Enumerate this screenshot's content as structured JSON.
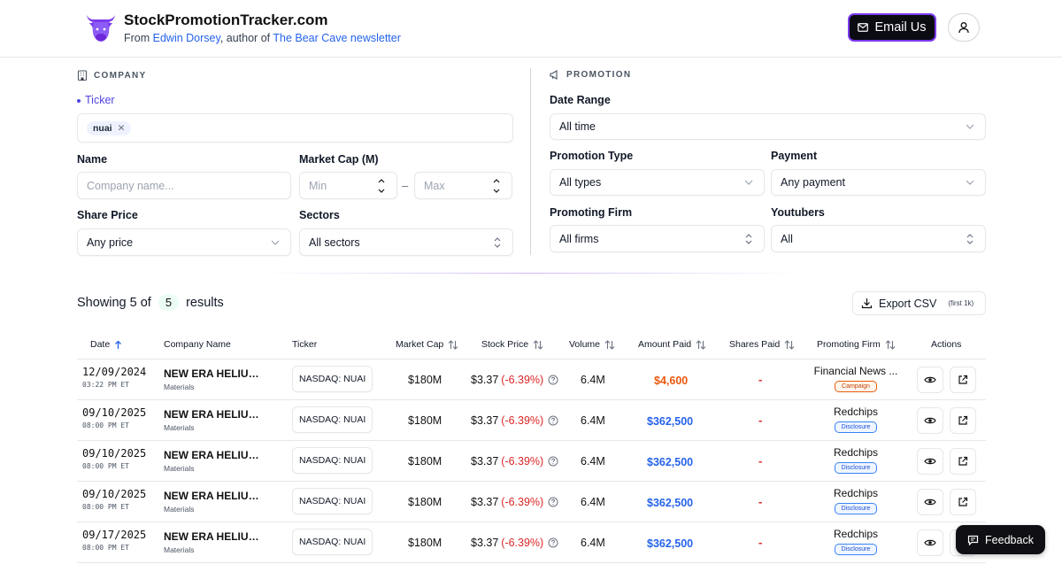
{
  "header": {
    "title": "StockPromotionTracker.com",
    "sub_prefix": "From ",
    "author": "Edwin Dorsey",
    "sub_middle": ", author of ",
    "newsletter": "The Bear Cave newsletter",
    "email_label": "Email Us"
  },
  "company": {
    "section_label": "COMPANY",
    "ticker_label": "Ticker",
    "ticker_chip": "nuai",
    "name_label": "Name",
    "name_placeholder": "Company name...",
    "market_cap_label": "Market Cap (M)",
    "min_placeholder": "Min",
    "max_placeholder": "Max",
    "range_dash": "–",
    "share_price_label": "Share Price",
    "share_price_value": "Any price",
    "sectors_label": "Sectors",
    "sectors_value": "All sectors"
  },
  "promotion": {
    "section_label": "PROMOTION",
    "date_range_label": "Date Range",
    "date_range_value": "All time",
    "type_label": "Promotion Type",
    "type_value": "All types",
    "payment_label": "Payment",
    "payment_value": "Any payment",
    "firm_label": "Promoting Firm",
    "firm_value": "All firms",
    "youtubers_label": "Youtubers",
    "youtubers_value": "All"
  },
  "results": {
    "prefix": "Showing 5 of",
    "count": "5",
    "suffix": "results",
    "export_label": "Export CSV",
    "export_note": "(first 1k)"
  },
  "table": {
    "headers": {
      "date": "Date",
      "company": "Company Name",
      "ticker": "Ticker",
      "market_cap": "Market Cap",
      "stock_price": "Stock Price",
      "volume": "Volume",
      "amount_paid": "Amount Paid",
      "shares_paid": "Shares Paid",
      "promoting_firm": "Promoting Firm",
      "actions": "Actions"
    },
    "rows": [
      {
        "date": "12/09/2024",
        "time": "03:22 PM ET",
        "company": "NEW ERA HELIUM I...",
        "sector": "Materials",
        "ticker": "NASDAQ: NUAI",
        "market_cap": "$180M",
        "price": "$3.37",
        "change": "(-6.39%)",
        "volume": "6.4M",
        "amount": "$4,600",
        "amount_color": "orange",
        "shares": "-",
        "firm": "Financial News ...",
        "badge": "Campaign"
      },
      {
        "date": "09/10/2025",
        "time": "08:00 PM ET",
        "company": "NEW ERA HELIUM I...",
        "sector": "Materials",
        "ticker": "NASDAQ: NUAI",
        "market_cap": "$180M",
        "price": "$3.37",
        "change": "(-6.39%)",
        "volume": "6.4M",
        "amount": "$362,500",
        "amount_color": "blue",
        "shares": "-",
        "firm": "Redchips",
        "badge": "Disclosure"
      },
      {
        "date": "09/10/2025",
        "time": "08:00 PM ET",
        "company": "NEW ERA HELIUM I...",
        "sector": "Materials",
        "ticker": "NASDAQ: NUAI",
        "market_cap": "$180M",
        "price": "$3.37",
        "change": "(-6.39%)",
        "volume": "6.4M",
        "amount": "$362,500",
        "amount_color": "blue",
        "shares": "-",
        "firm": "Redchips",
        "badge": "Disclosure"
      },
      {
        "date": "09/10/2025",
        "time": "08:00 PM ET",
        "company": "NEW ERA HELIUM I...",
        "sector": "Materials",
        "ticker": "NASDAQ: NUAI",
        "market_cap": "$180M",
        "price": "$3.37",
        "change": "(-6.39%)",
        "volume": "6.4M",
        "amount": "$362,500",
        "amount_color": "blue",
        "shares": "-",
        "firm": "Redchips",
        "badge": "Disclosure"
      },
      {
        "date": "09/17/2025",
        "time": "08:00 PM ET",
        "company": "NEW ERA HELIUM I...",
        "sector": "Materials",
        "ticker": "NASDAQ: NUAI",
        "market_cap": "$180M",
        "price": "$3.37",
        "change": "(-6.39%)",
        "volume": "6.4M",
        "amount": "$362,500",
        "amount_color": "blue",
        "shares": "-",
        "firm": "Redchips",
        "badge": "Disclosure"
      }
    ]
  },
  "feedback_label": "Feedback",
  "colors": {
    "accent": "#7c3aed",
    "link": "#2563eb",
    "negative": "#dc2626",
    "amount_orange": "#ea580c",
    "amount_blue": "#2563eb"
  }
}
